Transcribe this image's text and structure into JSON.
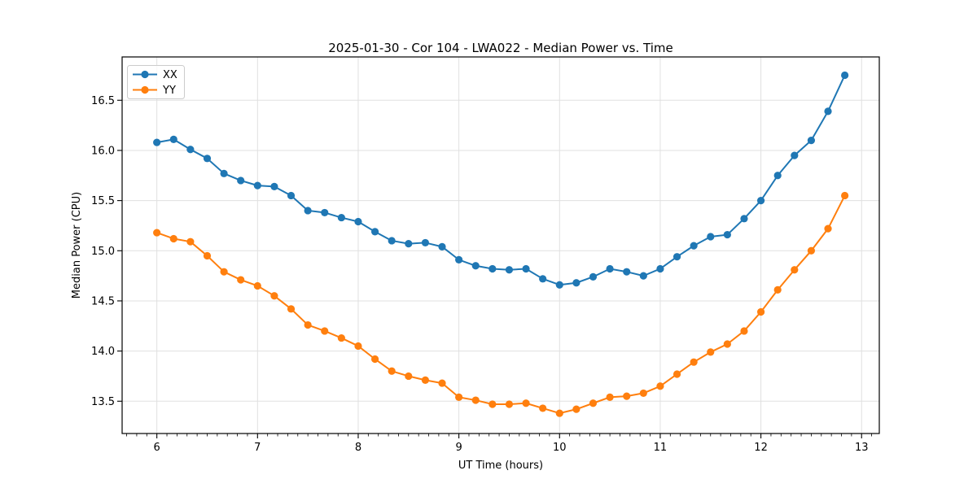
{
  "chart_data": {
    "type": "line",
    "title": "2025-01-30 - Cor 104 - LWA022 - Median Power vs. Time",
    "xlabel": "UT Time (hours)",
    "ylabel": "Median Power (CPU)",
    "xlim": [
      5.655,
      13.176
    ],
    "ylim": [
      13.178,
      16.932
    ],
    "xticks": [
      6,
      7,
      8,
      9,
      10,
      11,
      12,
      13
    ],
    "yticks": [
      13.5,
      14.0,
      14.5,
      15.0,
      15.5,
      16.0,
      16.5
    ],
    "x_minor_tick_step": 0.1,
    "grid": true,
    "legend_position": "upper left",
    "background_color": "#ffffff",
    "grid_color": "#e0e0e0",
    "x": [
      6.0,
      6.1667,
      6.3333,
      6.5,
      6.6667,
      6.8333,
      7.0,
      7.1667,
      7.3333,
      7.5,
      7.6667,
      7.8333,
      8.0,
      8.1667,
      8.3333,
      8.5,
      8.6667,
      8.8333,
      9.0,
      9.1667,
      9.3333,
      9.5,
      9.6667,
      9.8333,
      10.0,
      10.1667,
      10.3333,
      10.5,
      10.6667,
      10.8333,
      11.0,
      11.1667,
      11.3333,
      11.5,
      11.6667,
      11.8333,
      12.0,
      12.1667,
      12.3333,
      12.5,
      12.6667,
      12.8333
    ],
    "series": [
      {
        "name": "XX",
        "color": "#1f77b4",
        "values": [
          16.08,
          16.11,
          16.01,
          15.92,
          15.77,
          15.7,
          15.65,
          15.64,
          15.55,
          15.4,
          15.38,
          15.33,
          15.29,
          15.19,
          15.1,
          15.07,
          15.08,
          15.04,
          14.91,
          14.85,
          14.82,
          14.81,
          14.82,
          14.72,
          14.66,
          14.68,
          14.74,
          14.82,
          14.79,
          14.75,
          14.82,
          14.94,
          15.05,
          15.14,
          15.16,
          15.32,
          15.5,
          15.75,
          15.95,
          16.1,
          16.39,
          16.75
        ]
      },
      {
        "name": "YY",
        "color": "#ff7f0e",
        "values": [
          15.18,
          15.12,
          15.09,
          14.95,
          14.79,
          14.71,
          14.65,
          14.55,
          14.42,
          14.26,
          14.2,
          14.13,
          14.05,
          13.92,
          13.8,
          13.75,
          13.71,
          13.68,
          13.54,
          13.51,
          13.47,
          13.47,
          13.48,
          13.43,
          13.38,
          13.42,
          13.48,
          13.54,
          13.55,
          13.58,
          13.65,
          13.77,
          13.89,
          13.99,
          14.07,
          14.2,
          14.39,
          14.61,
          14.81,
          15.0,
          15.22,
          15.55
        ]
      }
    ]
  }
}
